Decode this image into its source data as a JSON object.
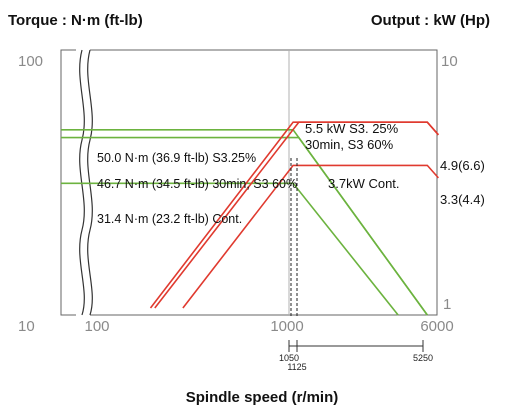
{
  "chart_data": {
    "type": "line",
    "titles": {
      "torque_axis": "Torque : N·m (ft-lb)",
      "output_axis": "Output : kW (Hp)",
      "x_axis": "Spindle speed (r/min)"
    },
    "axes": {
      "left_ticks": [
        "100",
        "10"
      ],
      "right_ticks": [
        "10",
        "1"
      ],
      "x_ticks": [
        "10",
        "100",
        "1000",
        "6000"
      ],
      "x_marker_ticks": [
        "1050",
        "1125",
        "5250"
      ],
      "x_scale": "log",
      "y_scale": "log",
      "xlim": [
        10,
        6000
      ],
      "left_ylim": [
        10,
        100
      ],
      "right_ylim": [
        1,
        10
      ],
      "axis_break": true
    },
    "colors": {
      "torque": "#6cb33f",
      "output": "#e03a2f",
      "axis": "#666666",
      "divider": "#b0b0b0"
    },
    "torque_series": [
      {
        "label": "50.0 N·m (36.9 ft-lb) S3.25%",
        "x": [
          10,
          1050,
          5250
        ],
        "y": [
          50.0,
          50.0,
          10
        ]
      },
      {
        "label": "46.7 N·m (34.5 ft-lb) 30min, S3 60%",
        "x": [
          10,
          1125,
          5250
        ],
        "y": [
          46.7,
          46.7,
          10
        ]
      },
      {
        "label": "31.4 N·m (23.2 ft-lb) Cont.",
        "x": [
          10,
          1050,
          3700
        ],
        "y": [
          31.4,
          31.4,
          10
        ]
      }
    ],
    "output_series": [
      {
        "label": "5.5 kW S3. 25%",
        "x": [
          190,
          1050,
          5250,
          6000
        ],
        "y": [
          1,
          5.5,
          5.5,
          4.9
        ]
      },
      {
        "label": "30min, S3 60%",
        "x": [
          200,
          1125,
          5250,
          6000
        ],
        "y": [
          1,
          5.5,
          5.5,
          4.9
        ]
      },
      {
        "label": "3.7kW Cont.",
        "x": [
          280,
          1050,
          5250,
          6000
        ],
        "y": [
          1,
          3.7,
          3.7,
          3.3
        ]
      }
    ],
    "annotations": {
      "output_top": "5.5 kW S3. 25%",
      "output_mid": "30min, S3 60%",
      "output_cont": "3.7kW Cont.",
      "right_high": "4.9(6.6)",
      "right_low": "3.3(4.4)"
    },
    "reference_speeds": [
      1050,
      1125
    ]
  }
}
